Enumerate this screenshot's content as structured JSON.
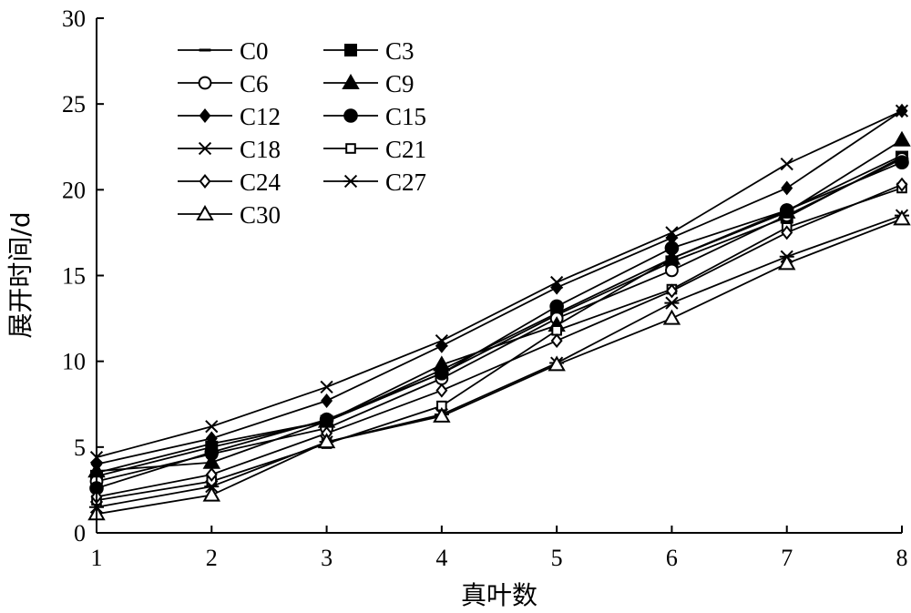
{
  "chart_data": {
    "type": "line",
    "title": "",
    "xlabel": "真叶数",
    "ylabel": "展开时间/d",
    "x": [
      1,
      2,
      3,
      4,
      5,
      6,
      7,
      8
    ],
    "xlim": [
      1,
      8
    ],
    "ylim": [
      0,
      30
    ],
    "xticks": [
      "1",
      "2",
      "3",
      "4",
      "5",
      "6",
      "7",
      "8"
    ],
    "yticks": [
      "0",
      "5",
      "10",
      "15",
      "20",
      "25",
      "30"
    ],
    "grid": false,
    "legend_position": "top-left",
    "series": [
      {
        "name": "C0",
        "marker": "dash",
        "values": [
          3.5,
          5.2,
          6.5,
          9.5,
          12.8,
          16.0,
          18.8,
          22.0
        ]
      },
      {
        "name": "C3",
        "marker": "square-filled",
        "values": [
          3.3,
          5.0,
          6.5,
          9.3,
          12.7,
          15.8,
          18.4,
          21.9
        ]
      },
      {
        "name": "C6",
        "marker": "circle-open",
        "values": [
          3.0,
          4.6,
          6.1,
          9.0,
          12.5,
          15.3,
          18.5,
          21.8
        ]
      },
      {
        "name": "C9",
        "marker": "triangle-filled",
        "values": [
          3.6,
          4.1,
          6.5,
          9.8,
          12.1,
          16.0,
          18.7,
          22.9
        ]
      },
      {
        "name": "C12",
        "marker": "diamond-filled",
        "values": [
          4.0,
          5.5,
          7.7,
          10.9,
          14.3,
          17.2,
          20.1,
          24.6
        ]
      },
      {
        "name": "C15",
        "marker": "circle-filled",
        "values": [
          2.6,
          4.7,
          6.6,
          9.3,
          13.2,
          16.6,
          18.8,
          21.6
        ]
      },
      {
        "name": "C18",
        "marker": "x",
        "values": [
          4.4,
          6.2,
          8.5,
          11.2,
          14.6,
          17.5,
          21.5,
          24.6
        ]
      },
      {
        "name": "C21",
        "marker": "square-open",
        "values": [
          1.9,
          3.0,
          5.2,
          7.4,
          11.8,
          14.2,
          17.8,
          20.1
        ]
      },
      {
        "name": "C24",
        "marker": "diamond-open",
        "values": [
          2.1,
          3.4,
          5.8,
          8.3,
          11.2,
          14.1,
          17.5,
          20.3
        ]
      },
      {
        "name": "C27",
        "marker": "asterisk",
        "values": [
          1.5,
          2.7,
          5.3,
          6.9,
          9.9,
          13.4,
          16.1,
          18.5
        ]
      },
      {
        "name": "C30",
        "marker": "triangle-open",
        "values": [
          1.1,
          2.2,
          5.3,
          6.8,
          9.8,
          12.5,
          15.7,
          18.3
        ]
      }
    ]
  }
}
